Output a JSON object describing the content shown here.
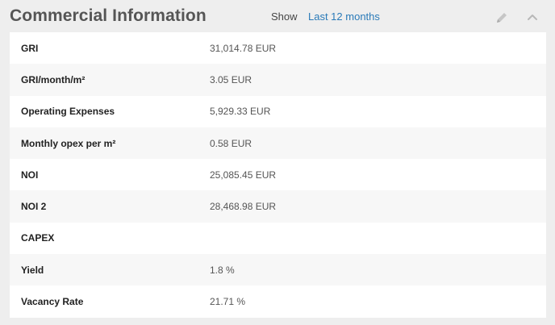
{
  "header": {
    "title": "Commercial Information",
    "show_label": "Show",
    "period_link": "Last 12 months"
  },
  "icons": {
    "edit": "pencil-icon",
    "collapse": "chevron-up-icon"
  },
  "rows": [
    {
      "label": "GRI",
      "value": "31,014.78 EUR"
    },
    {
      "label": "GRI/month/m²",
      "value": "3.05 EUR"
    },
    {
      "label": "Operating Expenses",
      "value": "5,929.33 EUR"
    },
    {
      "label": "Monthly opex per m²",
      "value": "0.58 EUR"
    },
    {
      "label": "NOI",
      "value": "25,085.45 EUR"
    },
    {
      "label": "NOI 2",
      "value": "28,468.98 EUR"
    },
    {
      "label": "CAPEX",
      "value": ""
    },
    {
      "label": "Yield",
      "value": "1.8 %"
    },
    {
      "label": "Vacancy Rate",
      "value": "21.71 %"
    }
  ]
}
